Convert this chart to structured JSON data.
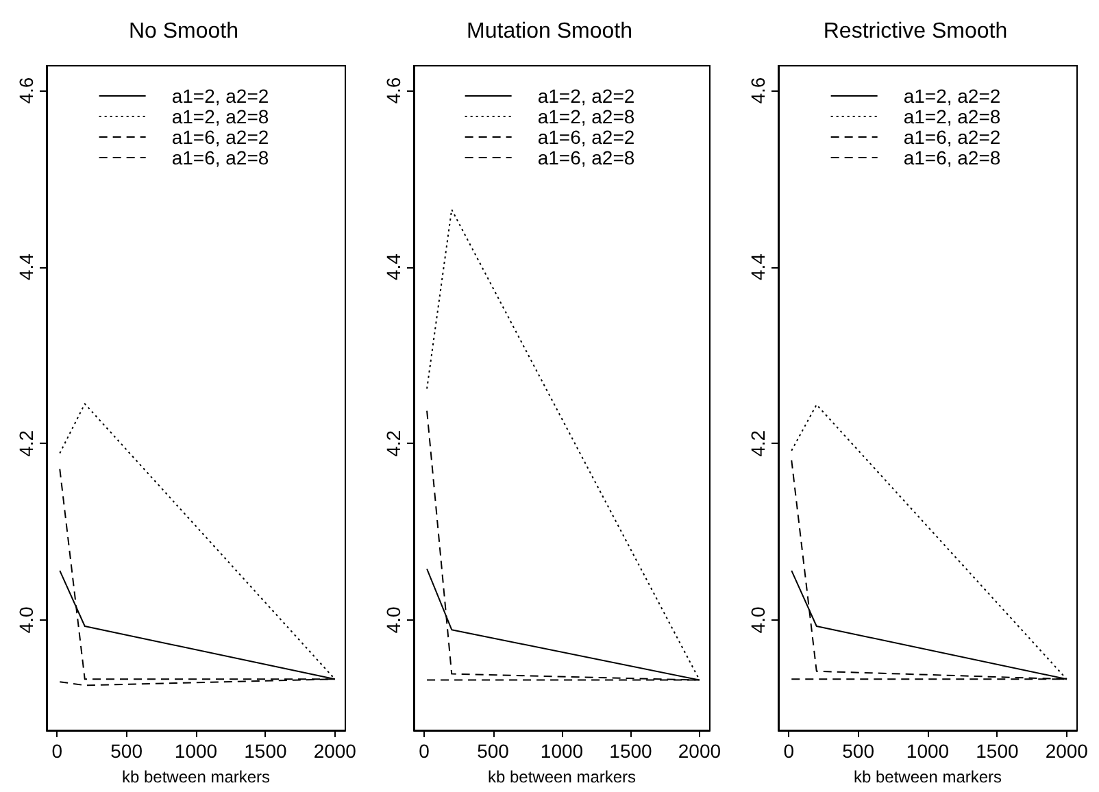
{
  "chart_data": [
    {
      "type": "line",
      "title": "No Smooth",
      "xlabel": "kb between markers",
      "x": [
        20,
        200,
        2000
      ],
      "xlim": [
        -75,
        2075
      ],
      "xticks": [
        0,
        500,
        1000,
        1500,
        2000
      ],
      "ylim": [
        3.875,
        4.628
      ],
      "yticks": [
        {
          "value": 4.0,
          "label": "4.0"
        },
        {
          "value": 4.2,
          "label": "4.2"
        },
        {
          "value": 4.4,
          "label": "4.4"
        },
        {
          "value": 4.6,
          "label": "4.6"
        }
      ],
      "grid": false,
      "legend": "top",
      "marker": "none",
      "series": [
        {
          "name": "a1=2, a2=2",
          "color": "#000000",
          "line_style": "solid",
          "values": [
            4.056,
            3.993,
            3.933
          ]
        },
        {
          "name": "a1=2, a2=8",
          "color": "#000000",
          "line_style": "dotted",
          "values": [
            4.189,
            4.245,
            3.933
          ]
        },
        {
          "name": "a1=6, a2=2",
          "color": "#000000",
          "line_style": "dashed",
          "values": [
            3.93,
            3.926,
            3.933
          ]
        },
        {
          "name": "a1=6, a2=8",
          "color": "#000000",
          "line_style": "dashed",
          "values": [
            4.171,
            3.933,
            3.933
          ]
        }
      ]
    },
    {
      "type": "line",
      "title": "Mutation Smooth",
      "xlabel": "kb between markers",
      "x": [
        20,
        200,
        2000
      ],
      "xlim": [
        -75,
        2075
      ],
      "xticks": [
        0,
        500,
        1000,
        1500,
        2000
      ],
      "ylim": [
        3.875,
        4.628
      ],
      "yticks": [
        {
          "value": 4.0,
          "label": "4.0"
        },
        {
          "value": 4.2,
          "label": "4.2"
        },
        {
          "value": 4.4,
          "label": "4.4"
        },
        {
          "value": 4.6,
          "label": "4.6"
        }
      ],
      "grid": false,
      "legend": "top",
      "marker": "none",
      "series": [
        {
          "name": "a1=2, a2=2",
          "color": "#000000",
          "line_style": "solid",
          "values": [
            4.058,
            3.989,
            3.932
          ]
        },
        {
          "name": "a1=2, a2=8",
          "color": "#000000",
          "line_style": "dotted",
          "values": [
            4.262,
            4.465,
            3.932
          ]
        },
        {
          "name": "a1=6, a2=2",
          "color": "#000000",
          "line_style": "dashed",
          "values": [
            3.932,
            3.932,
            3.932
          ]
        },
        {
          "name": "a1=6, a2=8",
          "color": "#000000",
          "line_style": "dashed",
          "values": [
            4.237,
            3.939,
            3.932
          ]
        }
      ]
    },
    {
      "type": "line",
      "title": "Restrictive Smooth",
      "xlabel": "kb between markers",
      "x": [
        20,
        200,
        2000
      ],
      "xlim": [
        -75,
        2075
      ],
      "xticks": [
        0,
        500,
        1000,
        1500,
        2000
      ],
      "ylim": [
        3.875,
        4.628
      ],
      "yticks": [
        {
          "value": 4.0,
          "label": "4.0"
        },
        {
          "value": 4.2,
          "label": "4.2"
        },
        {
          "value": 4.4,
          "label": "4.4"
        },
        {
          "value": 4.6,
          "label": "4.6"
        }
      ],
      "grid": false,
      "legend": "top",
      "marker": "none",
      "series": [
        {
          "name": "a1=2, a2=2",
          "color": "#000000",
          "line_style": "solid",
          "values": [
            4.056,
            3.993,
            3.933
          ]
        },
        {
          "name": "a1=2, a2=8",
          "color": "#000000",
          "line_style": "dotted",
          "values": [
            4.192,
            4.244,
            3.933
          ]
        },
        {
          "name": "a1=6, a2=2",
          "color": "#000000",
          "line_style": "dashed",
          "values": [
            3.933,
            3.933,
            3.933
          ]
        },
        {
          "name": "a1=6, a2=8",
          "color": "#000000",
          "line_style": "dashed",
          "values": [
            4.181,
            3.942,
            3.933
          ]
        }
      ]
    }
  ]
}
